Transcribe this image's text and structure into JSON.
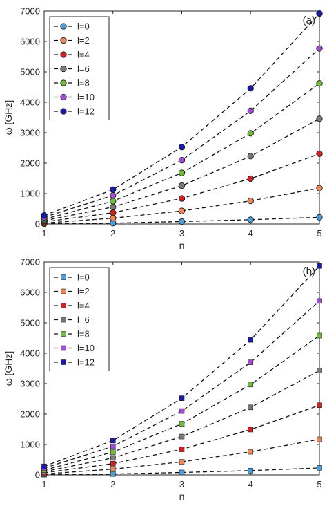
{
  "chart_data": [
    {
      "panel_label": "(a)",
      "type": "line",
      "marker": "circle",
      "xlabel": "n",
      "ylabel": "ω [GHz]",
      "xlim": [
        1,
        5
      ],
      "ylim": [
        0,
        7000
      ],
      "xticks": [
        "1",
        "2",
        "3",
        "4",
        "5"
      ],
      "yticks": [
        "0",
        "1000",
        "2000",
        "3000",
        "4000",
        "5000",
        "6000",
        "7000"
      ],
      "grid": false,
      "legend_position": "top-left",
      "x": [
        1,
        2,
        3,
        4,
        5
      ],
      "series": [
        {
          "name": "l=0",
          "color": "#4f9fd9",
          "values": [
            10,
            30,
            80,
            140,
            220
          ]
        },
        {
          "name": "l=2",
          "color": "#ea8a5e",
          "values": [
            30,
            190,
            430,
            760,
            1180
          ]
        },
        {
          "name": "l=4",
          "color": "#cc2222",
          "values": [
            70,
            370,
            840,
            1490,
            2310
          ]
        },
        {
          "name": "l=6",
          "color": "#7a7a7a",
          "values": [
            110,
            560,
            1260,
            2230,
            3460
          ]
        },
        {
          "name": "l=8",
          "color": "#72bd3f",
          "values": [
            160,
            750,
            1680,
            2980,
            4620
          ]
        },
        {
          "name": "l=10",
          "color": "#a24fd6",
          "values": [
            220,
            940,
            2100,
            3720,
            5770
          ]
        },
        {
          "name": "l=12",
          "color": "#1a1aa8",
          "values": [
            280,
            1130,
            2530,
            4460,
            6920
          ]
        }
      ]
    },
    {
      "panel_label": "(b)",
      "type": "line",
      "marker": "square",
      "xlabel": "n",
      "ylabel": "ω [GHz]",
      "xlim": [
        1,
        5
      ],
      "ylim": [
        0,
        7000
      ],
      "xticks": [
        "1",
        "2",
        "3",
        "4",
        "5"
      ],
      "yticks": [
        "0",
        "1000",
        "2000",
        "3000",
        "4000",
        "5000",
        "6000",
        "7000"
      ],
      "grid": false,
      "legend_position": "top-left",
      "x": [
        1,
        2,
        3,
        4,
        5
      ],
      "series": [
        {
          "name": "l=0",
          "color": "#4f9fd9",
          "values": [
            10,
            30,
            80,
            140,
            230
          ]
        },
        {
          "name": "l=2",
          "color": "#ea8a5e",
          "values": [
            30,
            190,
            430,
            760,
            1170
          ]
        },
        {
          "name": "l=4",
          "color": "#cc2222",
          "values": [
            70,
            370,
            840,
            1490,
            2290
          ]
        },
        {
          "name": "l=6",
          "color": "#7a7a7a",
          "values": [
            110,
            560,
            1260,
            2220,
            3430
          ]
        },
        {
          "name": "l=8",
          "color": "#72bd3f",
          "values": [
            160,
            750,
            1680,
            2970,
            4580
          ]
        },
        {
          "name": "l=10",
          "color": "#a24fd6",
          "values": [
            220,
            940,
            2100,
            3700,
            5720
          ]
        },
        {
          "name": "l=12",
          "color": "#1a1aa8",
          "values": [
            280,
            1130,
            2520,
            4440,
            6870
          ]
        }
      ]
    }
  ]
}
